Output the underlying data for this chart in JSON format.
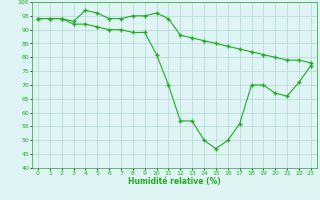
{
  "x": [
    0,
    1,
    2,
    3,
    4,
    5,
    6,
    7,
    8,
    9,
    10,
    11,
    12,
    13,
    14,
    15,
    16,
    17,
    18,
    19,
    20,
    21,
    22,
    23
  ],
  "line1": [
    94,
    94,
    94,
    93,
    97,
    96,
    94,
    94,
    95,
    95,
    96,
    94,
    88,
    87,
    86,
    85,
    84,
    83,
    82,
    81,
    80,
    79,
    79,
    78
  ],
  "line2": [
    94,
    94,
    94,
    92,
    92,
    91,
    90,
    90,
    89,
    89,
    81,
    70,
    57,
    57,
    50,
    47,
    50,
    56,
    70,
    70,
    67,
    66,
    71,
    77
  ],
  "line_color": "#22aa22",
  "bg_color": "#dff4f4",
  "grid_color": "#aacfcf",
  "xlabel": "Humidité relative (%)",
  "ylim": [
    40,
    100
  ],
  "xlim": [
    -0.5,
    23.5
  ],
  "yticks": [
    40,
    45,
    50,
    55,
    60,
    65,
    70,
    75,
    80,
    85,
    90,
    95,
    100
  ],
  "xticks": [
    0,
    1,
    2,
    3,
    4,
    5,
    6,
    7,
    8,
    9,
    10,
    11,
    12,
    13,
    14,
    15,
    16,
    17,
    18,
    19,
    20,
    21,
    22,
    23
  ],
  "marker": "+",
  "markersize": 3.5,
  "markeredgewidth": 1.0,
  "linewidth": 0.8,
  "tick_fontsize": 4.5,
  "xlabel_fontsize": 5.5
}
